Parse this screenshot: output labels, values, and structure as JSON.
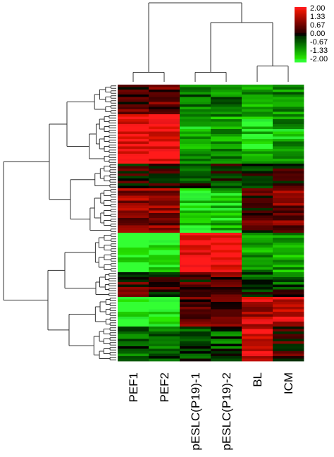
{
  "chart_data": {
    "type": "heatmap",
    "title": "",
    "xlabel": "",
    "ylabel": "",
    "columns": [
      "PEF1",
      "PEF2",
      "pESLC(P19)-1",
      "pESLC(P19)-2",
      "BL",
      "ICM"
    ],
    "color_scale": {
      "ticks": [
        "2.00",
        "1.33",
        "0.67",
        "0.00",
        "-0.67",
        "-1.33",
        "-2.00"
      ],
      "values": [
        2.0,
        1.33,
        0.67,
        0.0,
        -0.67,
        -1.33,
        -2.0
      ],
      "colors": [
        "#ff1a1a",
        "#b80000",
        "#5a0000",
        "#000000",
        "#005a00",
        "#00b800",
        "#33ff33"
      ],
      "range": [
        -2.0,
        2.0
      ],
      "legend_position": "top-right"
    },
    "row_clusters": [
      {
        "rows": 12,
        "values": [
          0.5,
          0.6,
          -0.7,
          -0.8,
          -1.2,
          -1.0
        ]
      },
      {
        "rows": 20,
        "values": [
          2.0,
          2.0,
          -1.2,
          -1.1,
          -1.5,
          -1.2
        ]
      },
      {
        "rows": 10,
        "values": [
          0.2,
          0.3,
          -0.3,
          -0.2,
          -0.2,
          0.4
        ]
      },
      {
        "rows": 18,
        "values": [
          1.0,
          0.9,
          -1.6,
          -1.5,
          0.4,
          0.8
        ]
      },
      {
        "rows": 16,
        "values": [
          -2.0,
          -1.9,
          2.0,
          2.0,
          -1.0,
          -1.2
        ]
      },
      {
        "rows": 10,
        "values": [
          0.4,
          0.3,
          0.4,
          0.5,
          -0.3,
          -0.4
        ]
      },
      {
        "rows": 12,
        "values": [
          -2.0,
          -2.0,
          0.6,
          0.5,
          1.3,
          1.6
        ]
      },
      {
        "rows": 14,
        "values": [
          -0.6,
          -0.6,
          -0.4,
          -0.5,
          1.7,
          0.3
        ]
      }
    ],
    "column_dendrogram": [
      {
        "join": [
          0,
          1
        ],
        "height": 0.12
      },
      {
        "join": [
          2,
          3
        ],
        "height": 0.12
      },
      {
        "join": [
          4,
          5
        ],
        "height": 0.2
      },
      {
        "join": [
          "c2",
          "c3"
        ],
        "height": 0.75
      },
      {
        "join": [
          "c1",
          "c4"
        ],
        "height": 1.0
      }
    ]
  }
}
